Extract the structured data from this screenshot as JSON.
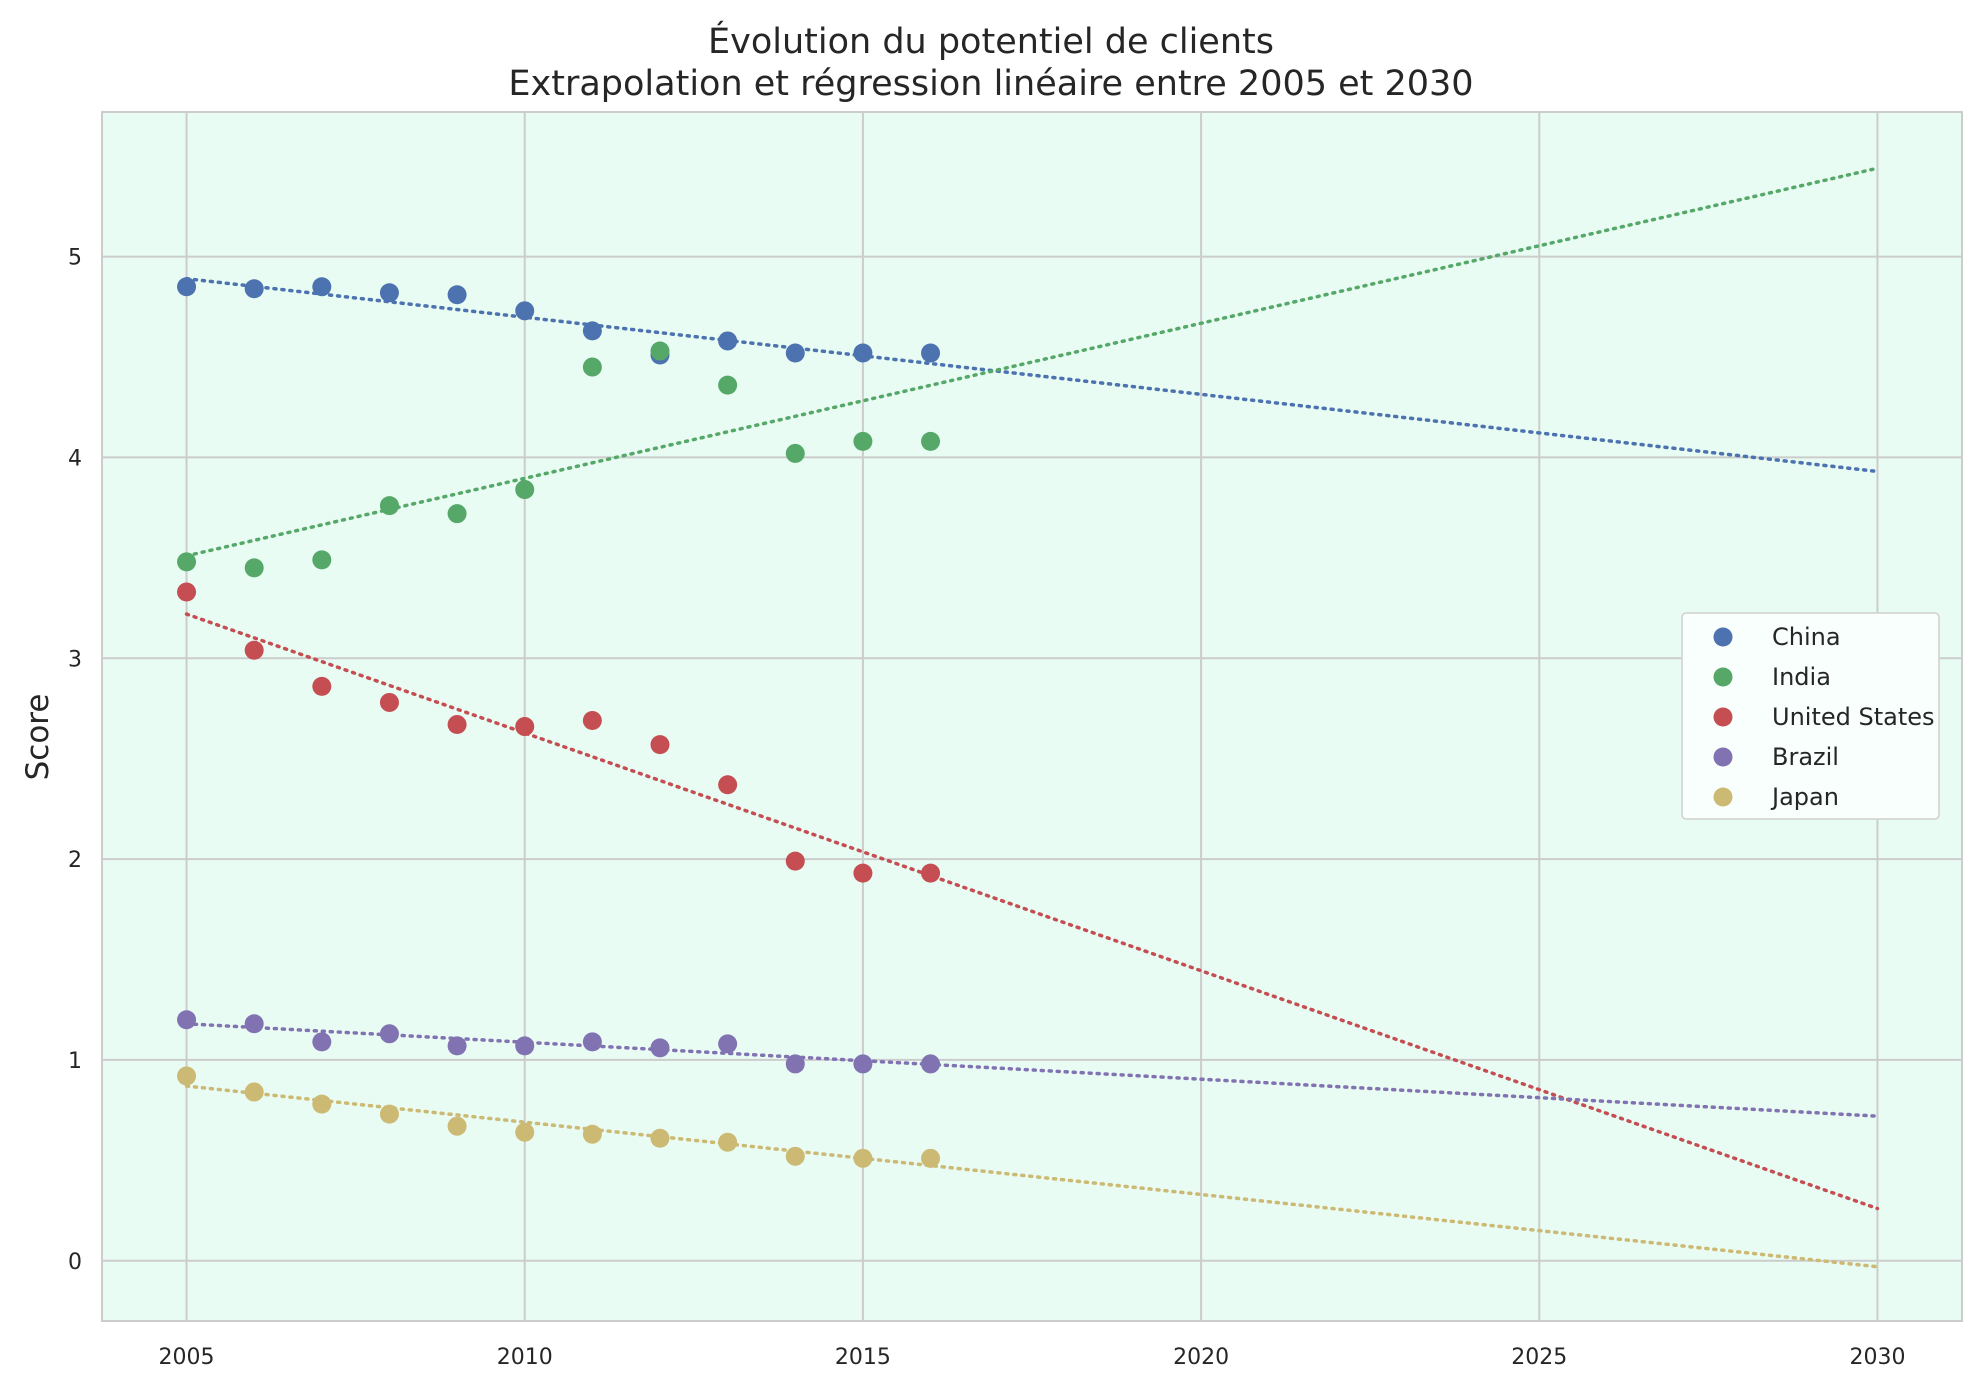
{
  "chart_data": {
    "type": "scatter",
    "title": "Évolution du potentiel de clients",
    "subtitle": "Extrapolation et régression linéaire entre 2005 et 2030",
    "xlabel": "",
    "ylabel": "Score",
    "xlim": [
      2003.75,
      2031.25
    ],
    "ylim": [
      -0.3,
      5.72
    ],
    "xticks": [
      2005,
      2010,
      2015,
      2020,
      2025,
      2030
    ],
    "yticks": [
      0,
      1,
      2,
      3,
      4,
      5
    ],
    "grid": true,
    "legend_position": "center-right",
    "background": "#e8fcf3",
    "series": [
      {
        "name": "China",
        "color": "#4c72b0",
        "x": [
          2005,
          2006,
          2007,
          2008,
          2009,
          2010,
          2011,
          2012,
          2013,
          2014,
          2015,
          2016
        ],
        "y": [
          4.85,
          4.84,
          4.85,
          4.82,
          4.81,
          4.73,
          4.63,
          4.51,
          4.58,
          4.52,
          4.52,
          4.52
        ],
        "trend": [
          4.89,
          3.93
        ]
      },
      {
        "name": "India",
        "color": "#55a868",
        "x": [
          2005,
          2006,
          2007,
          2008,
          2009,
          2010,
          2011,
          2012,
          2013,
          2014,
          2015,
          2016
        ],
        "y": [
          3.48,
          3.45,
          3.49,
          3.76,
          3.72,
          3.84,
          4.45,
          4.53,
          4.36,
          4.02,
          4.08,
          4.08
        ],
        "trend": [
          3.51,
          5.44
        ]
      },
      {
        "name": "United States",
        "color": "#c44e52",
        "x": [
          2005,
          2006,
          2007,
          2008,
          2009,
          2010,
          2011,
          2012,
          2013,
          2014,
          2015,
          2016
        ],
        "y": [
          3.33,
          3.04,
          2.86,
          2.78,
          2.67,
          2.66,
          2.69,
          2.57,
          2.37,
          1.99,
          1.93,
          1.93
        ],
        "trend": [
          3.22,
          0.26
        ]
      },
      {
        "name": "Brazil",
        "color": "#8172b2",
        "x": [
          2005,
          2006,
          2007,
          2008,
          2009,
          2010,
          2011,
          2012,
          2013,
          2014,
          2015,
          2016
        ],
        "y": [
          1.2,
          1.18,
          1.09,
          1.13,
          1.07,
          1.07,
          1.09,
          1.06,
          1.08,
          0.98,
          0.98,
          0.98
        ],
        "trend": [
          1.18,
          0.72
        ]
      },
      {
        "name": "Japan",
        "color": "#ccb974",
        "x": [
          2005,
          2006,
          2007,
          2008,
          2009,
          2010,
          2011,
          2012,
          2013,
          2014,
          2015,
          2016
        ],
        "y": [
          0.92,
          0.84,
          0.78,
          0.73,
          0.67,
          0.64,
          0.63,
          0.61,
          0.59,
          0.52,
          0.51,
          0.51
        ],
        "trend": [
          0.87,
          -0.03
        ]
      }
    ]
  }
}
